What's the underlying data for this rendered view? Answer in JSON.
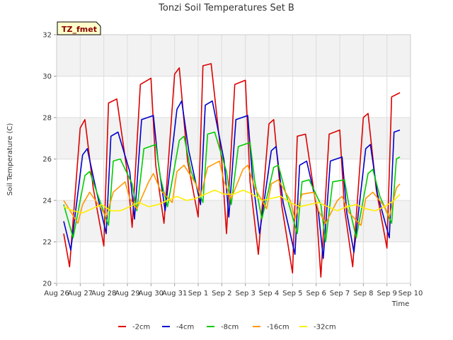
{
  "chart_data": {
    "type": "line",
    "title": "Tonzi Soil Temperatures Set B",
    "xlabel": "Time",
    "ylabel": "Soil Temperature (C)",
    "tag": "TZ_fmet",
    "ylim": [
      20,
      32
    ],
    "y_ticks": [
      "20",
      "22",
      "24",
      "26",
      "28",
      "30",
      "32"
    ],
    "xlim": [
      0,
      15
    ],
    "x_ticks": [
      "Aug 26",
      "Aug 27",
      "Aug 28",
      "Aug 29",
      "Aug 30",
      "Aug 31",
      "Sep 1",
      "Sep 2",
      "Sep 3",
      "Sep 4",
      "Sep 5",
      "Sep 6",
      "Sep 7",
      "Sep 8",
      "Sep 9",
      "Sep 10"
    ],
    "grid": true,
    "legend_position": "bottom",
    "series": [
      {
        "name": "-2cm",
        "color": "#dd0000",
        "x": [
          0.3,
          0.55,
          1.0,
          1.2,
          1.55,
          2.0,
          2.2,
          2.55,
          3.0,
          3.2,
          3.55,
          4.0,
          4.2,
          4.55,
          5.0,
          5.2,
          5.55,
          6.0,
          6.2,
          6.55,
          7.0,
          7.2,
          7.55,
          8.0,
          8.2,
          8.55,
          9.0,
          9.2,
          9.55,
          10.0,
          10.2,
          10.55,
          11.0,
          11.2,
          11.55,
          12.0,
          12.2,
          12.55,
          13.0,
          13.2,
          13.55,
          14.0,
          14.2,
          14.55
        ],
        "y": [
          22.4,
          20.8,
          27.5,
          27.9,
          24.6,
          21.8,
          28.7,
          28.9,
          25.3,
          22.7,
          29.6,
          29.9,
          25.7,
          22.9,
          30.1,
          30.4,
          25.9,
          23.2,
          30.5,
          30.6,
          25.9,
          22.4,
          29.6,
          29.8,
          24.9,
          21.4,
          27.7,
          27.9,
          23.7,
          20.5,
          27.1,
          27.2,
          23.7,
          20.3,
          27.2,
          27.4,
          23.6,
          20.8,
          28.0,
          28.2,
          24.5,
          21.7,
          29.0,
          29.2
        ]
      },
      {
        "name": "-4cm",
        "color": "#0000cc",
        "x": [
          0.3,
          0.6,
          1.1,
          1.3,
          1.6,
          2.1,
          2.3,
          2.6,
          3.1,
          3.3,
          3.6,
          4.1,
          4.3,
          4.6,
          5.1,
          5.3,
          5.6,
          6.1,
          6.3,
          6.6,
          7.1,
          7.3,
          7.6,
          8.1,
          8.3,
          8.6,
          9.1,
          9.3,
          9.6,
          10.1,
          10.3,
          10.6,
          11.1,
          11.3,
          11.6,
          12.1,
          12.3,
          12.6,
          13.1,
          13.3,
          13.6,
          14.1,
          14.3,
          14.55
        ],
        "y": [
          23.0,
          21.6,
          26.2,
          26.5,
          24.9,
          22.4,
          27.1,
          27.3,
          25.4,
          23.1,
          27.9,
          28.1,
          25.9,
          23.5,
          28.4,
          28.8,
          26.4,
          23.8,
          28.6,
          28.8,
          25.9,
          23.2,
          27.9,
          28.1,
          25.1,
          22.4,
          26.4,
          26.6,
          23.9,
          21.4,
          25.7,
          25.9,
          23.4,
          21.2,
          25.9,
          26.1,
          23.4,
          21.5,
          26.5,
          26.7,
          24.3,
          22.2,
          27.3,
          27.4
        ]
      },
      {
        "name": "-8cm",
        "color": "#00cc00",
        "x": [
          0.3,
          0.7,
          1.2,
          1.4,
          1.7,
          2.2,
          2.4,
          2.7,
          3.2,
          3.4,
          3.7,
          4.2,
          4.4,
          4.7,
          5.2,
          5.4,
          5.7,
          6.2,
          6.4,
          6.7,
          7.2,
          7.4,
          7.7,
          8.2,
          8.4,
          8.7,
          9.2,
          9.4,
          9.7,
          10.2,
          10.4,
          10.7,
          11.2,
          11.4,
          11.7,
          12.2,
          12.4,
          12.7,
          13.2,
          13.4,
          13.7,
          14.2,
          14.4,
          14.55
        ],
        "y": [
          23.8,
          22.2,
          25.2,
          25.4,
          24.4,
          22.8,
          25.9,
          26.0,
          24.8,
          23.5,
          26.5,
          26.7,
          25.1,
          23.7,
          26.9,
          27.1,
          25.4,
          23.9,
          27.2,
          27.3,
          25.4,
          23.8,
          26.6,
          26.8,
          24.9,
          23.1,
          25.6,
          25.7,
          24.4,
          22.4,
          24.9,
          25.0,
          23.8,
          22.0,
          24.9,
          25.0,
          23.7,
          22.2,
          25.3,
          25.5,
          24.2,
          22.9,
          26.0,
          26.1
        ]
      },
      {
        "name": "-16cm",
        "color": "#ff9900",
        "x": [
          0.3,
          0.9,
          1.1,
          1.4,
          1.9,
          2.1,
          2.4,
          2.9,
          3.1,
          3.4,
          3.9,
          4.1,
          4.4,
          4.9,
          5.1,
          5.4,
          5.9,
          6.1,
          6.4,
          6.9,
          7.1,
          7.4,
          7.9,
          8.1,
          8.4,
          8.9,
          9.1,
          9.4,
          9.9,
          10.1,
          10.4,
          10.9,
          11.1,
          11.4,
          11.9,
          12.1,
          12.4,
          12.9,
          13.1,
          13.4,
          13.9,
          14.1,
          14.4,
          14.55
        ],
        "y": [
          24.0,
          22.9,
          23.8,
          24.4,
          23.6,
          23.2,
          24.4,
          24.9,
          24.1,
          23.6,
          24.9,
          25.3,
          24.5,
          23.9,
          25.4,
          25.7,
          24.8,
          24.2,
          25.6,
          25.9,
          24.9,
          24.1,
          25.5,
          25.7,
          24.6,
          23.6,
          24.8,
          25.0,
          24.0,
          23.1,
          24.3,
          24.4,
          23.5,
          22.9,
          24.0,
          24.2,
          23.4,
          22.8,
          24.1,
          24.4,
          23.7,
          23.2,
          24.6,
          24.8
        ]
      },
      {
        "name": "-32cm",
        "color": "#ffee00",
        "x": [
          0.3,
          0.7,
          1.1,
          1.5,
          1.9,
          2.3,
          2.7,
          3.1,
          3.5,
          3.9,
          4.3,
          4.7,
          5.1,
          5.5,
          5.9,
          6.3,
          6.7,
          7.1,
          7.5,
          7.9,
          8.3,
          8.7,
          9.1,
          9.5,
          9.9,
          10.3,
          10.7,
          11.1,
          11.5,
          11.9,
          12.3,
          12.7,
          13.1,
          13.5,
          13.9,
          14.3,
          14.55
        ],
        "y": [
          23.7,
          23.5,
          23.4,
          23.6,
          23.8,
          23.5,
          23.5,
          23.7,
          23.9,
          23.7,
          23.8,
          24.0,
          24.2,
          24.0,
          24.1,
          24.3,
          24.5,
          24.3,
          24.3,
          24.5,
          24.3,
          24.0,
          24.1,
          24.2,
          23.9,
          23.7,
          23.8,
          23.9,
          23.7,
          23.5,
          23.7,
          23.8,
          23.6,
          23.5,
          23.7,
          24.0,
          24.3
        ]
      }
    ]
  }
}
